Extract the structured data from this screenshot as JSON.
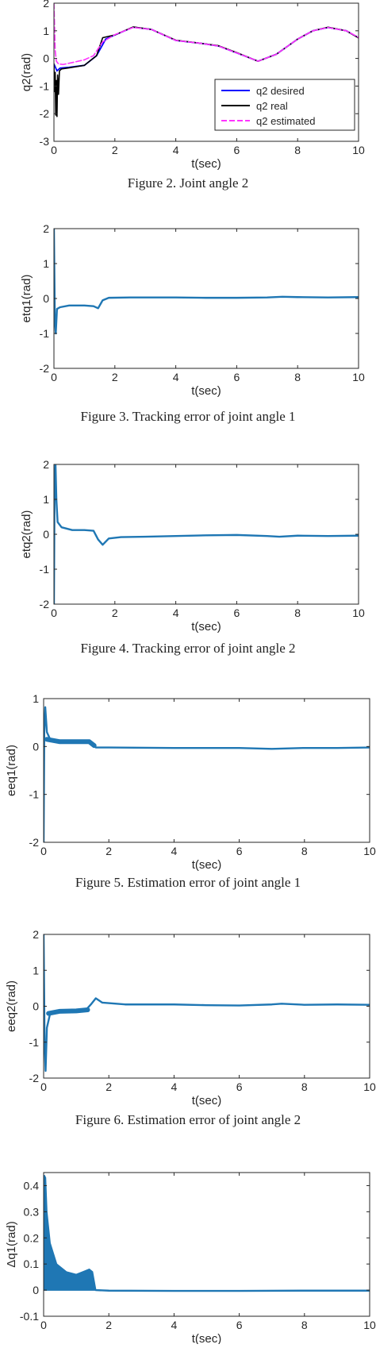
{
  "page": {
    "background": "#ffffff"
  },
  "chart_data": [
    {
      "type": "line",
      "caption": "Figure 2.    Joint angle 2",
      "xlabel": "t(sec)",
      "ylabel": "q2(rad)",
      "xlim": [
        0,
        10
      ],
      "ylim": [
        -3,
        2
      ],
      "xticks": [
        "0",
        "2",
        "4",
        "6",
        "8",
        "10"
      ],
      "yticks": [
        "-3",
        "-2",
        "-1",
        "0",
        "1",
        "2"
      ],
      "grid": false,
      "legend": {
        "position": "bottom-right",
        "entries": [
          "q2 desired",
          "q2 real",
          "q2 estimated"
        ]
      },
      "series": [
        {
          "name": "q2 desired",
          "color": "#0000ff",
          "style": "solid",
          "width": 1.8,
          "points": [
            [
              0,
              -0.2
            ],
            [
              0.1,
              -0.45
            ],
            [
              0.2,
              -0.35
            ],
            [
              0.5,
              -0.32
            ],
            [
              1,
              -0.25
            ],
            [
              1.4,
              0.1
            ],
            [
              1.7,
              0.7
            ],
            [
              2.0,
              0.85
            ],
            [
              2.6,
              1.13
            ],
            [
              3.2,
              1.05
            ],
            [
              4,
              0.65
            ],
            [
              4.8,
              0.55
            ],
            [
              5.4,
              0.45
            ],
            [
              6,
              0.2
            ],
            [
              6.7,
              -0.1
            ],
            [
              7.3,
              0.15
            ],
            [
              8,
              0.7
            ],
            [
              8.5,
              1.0
            ],
            [
              9,
              1.12
            ],
            [
              9.6,
              1.0
            ],
            [
              10,
              0.75
            ]
          ]
        },
        {
          "name": "q2 real",
          "color": "#000000",
          "style": "solid",
          "width": 1.6,
          "points": [
            [
              0,
              -0.2
            ],
            [
              0.02,
              -1.2
            ],
            [
              0.04,
              -0.5
            ],
            [
              0.06,
              -2.05
            ],
            [
              0.08,
              -0.8
            ],
            [
              0.1,
              -2.1
            ],
            [
              0.12,
              -0.6
            ],
            [
              0.15,
              -1.3
            ],
            [
              0.18,
              -0.45
            ],
            [
              0.25,
              -0.38
            ],
            [
              0.5,
              -0.34
            ],
            [
              1,
              -0.25
            ],
            [
              1.4,
              0.1
            ],
            [
              1.6,
              0.75
            ],
            [
              2.0,
              0.85
            ],
            [
              2.6,
              1.14
            ],
            [
              3.2,
              1.05
            ],
            [
              4,
              0.66
            ],
            [
              4.8,
              0.55
            ],
            [
              5.4,
              0.46
            ],
            [
              6,
              0.21
            ],
            [
              6.7,
              -0.1
            ],
            [
              7.3,
              0.15
            ],
            [
              8,
              0.7
            ],
            [
              8.5,
              1.0
            ],
            [
              9,
              1.13
            ],
            [
              9.6,
              1.0
            ],
            [
              10,
              0.74
            ]
          ]
        },
        {
          "name": "q2 estimated",
          "color": "#ff33ff",
          "style": "dashed",
          "width": 1.6,
          "points": [
            [
              0,
              2.0
            ],
            [
              0.04,
              0.3
            ],
            [
              0.08,
              -0.1
            ],
            [
              0.15,
              -0.2
            ],
            [
              0.3,
              -0.22
            ],
            [
              0.6,
              -0.15
            ],
            [
              1.0,
              -0.05
            ],
            [
              1.3,
              0.1
            ],
            [
              1.6,
              0.6
            ],
            [
              2.0,
              0.86
            ],
            [
              2.6,
              1.12
            ],
            [
              3.2,
              1.05
            ],
            [
              4,
              0.65
            ],
            [
              4.8,
              0.55
            ],
            [
              5.4,
              0.45
            ],
            [
              6,
              0.2
            ],
            [
              6.7,
              -0.1
            ],
            [
              7.3,
              0.15
            ],
            [
              8,
              0.7
            ],
            [
              8.5,
              1.0
            ],
            [
              9,
              1.12
            ],
            [
              9.6,
              1.0
            ],
            [
              10,
              0.76
            ]
          ]
        }
      ]
    },
    {
      "type": "line",
      "caption": "Figure 3.    Tracking error of joint angle 1",
      "xlabel": "t(sec)",
      "ylabel": "etq1(rad)",
      "xlim": [
        0,
        10
      ],
      "ylim": [
        -2,
        2
      ],
      "xticks": [
        "0",
        "2",
        "4",
        "6",
        "8",
        "10"
      ],
      "yticks": [
        "-2",
        "-1",
        "0",
        "1",
        "2"
      ],
      "grid": false,
      "series": [
        {
          "color": "#1f77b4",
          "style": "solid",
          "width": 2.4,
          "points": [
            [
              0,
              2.0
            ],
            [
              0.03,
              -0.6
            ],
            [
              0.06,
              -1.0
            ],
            [
              0.1,
              -0.3
            ],
            [
              0.2,
              -0.25
            ],
            [
              0.5,
              -0.2
            ],
            [
              1.0,
              -0.2
            ],
            [
              1.3,
              -0.22
            ],
            [
              1.45,
              -0.28
            ],
            [
              1.6,
              -0.05
            ],
            [
              1.8,
              0.02
            ],
            [
              2.5,
              0.03
            ],
            [
              4,
              0.03
            ],
            [
              5,
              0.02
            ],
            [
              6,
              0.02
            ],
            [
              7,
              0.03
            ],
            [
              7.5,
              0.05
            ],
            [
              8,
              0.04
            ],
            [
              9,
              0.03
            ],
            [
              10,
              0.04
            ]
          ]
        }
      ]
    },
    {
      "type": "line",
      "caption": "Figure 4.    Tracking error of joint angle 2",
      "xlabel": "t(sec)",
      "ylabel": "etq2(rad)",
      "xlim": [
        0,
        10
      ],
      "ylim": [
        -2,
        2
      ],
      "xticks": [
        "0",
        "2",
        "4",
        "6",
        "8",
        "10"
      ],
      "yticks": [
        "-2",
        "-1",
        "0",
        "1",
        "2"
      ],
      "grid": false,
      "series": [
        {
          "color": "#1f77b4",
          "style": "solid",
          "width": 2.4,
          "points": [
            [
              0,
              -2.0
            ],
            [
              0.02,
              1.2
            ],
            [
              0.05,
              2.05
            ],
            [
              0.08,
              1.0
            ],
            [
              0.12,
              0.35
            ],
            [
              0.25,
              0.2
            ],
            [
              0.6,
              0.12
            ],
            [
              1.0,
              0.12
            ],
            [
              1.3,
              0.1
            ],
            [
              1.45,
              -0.15
            ],
            [
              1.6,
              -0.3
            ],
            [
              1.8,
              -0.12
            ],
            [
              2.2,
              -0.08
            ],
            [
              3,
              -0.07
            ],
            [
              4,
              -0.05
            ],
            [
              5,
              -0.03
            ],
            [
              6,
              -0.02
            ],
            [
              7,
              -0.05
            ],
            [
              7.4,
              -0.07
            ],
            [
              8,
              -0.04
            ],
            [
              9,
              -0.05
            ],
            [
              10,
              -0.04
            ]
          ]
        }
      ]
    },
    {
      "type": "line",
      "caption": "Figure 5.    Estimation error of joint angle 1",
      "xlabel": "t(sec)",
      "ylabel": "eeq1(rad)",
      "xlim": [
        0,
        10
      ],
      "ylim": [
        -2,
        1
      ],
      "xticks": [
        "0",
        "2",
        "4",
        "6",
        "8",
        "10"
      ],
      "yticks": [
        "-2",
        "-1",
        "0",
        "1"
      ],
      "grid": false,
      "series": [
        {
          "color": "#1f77b4",
          "style": "solid",
          "width": 2.4,
          "points": [
            [
              0,
              -2.0
            ],
            [
              0.02,
              0.3
            ],
            [
              0.05,
              0.82
            ],
            [
              0.1,
              0.3
            ],
            [
              0.2,
              0.15
            ],
            [
              0.6,
              0.1
            ],
            [
              1.0,
              0.1
            ],
            [
              1.3,
              0.12
            ],
            [
              1.5,
              0.05
            ],
            [
              1.6,
              -0.02
            ],
            [
              2,
              -0.02
            ],
            [
              4,
              -0.03
            ],
            [
              6,
              -0.03
            ],
            [
              7,
              -0.05
            ],
            [
              8,
              -0.03
            ],
            [
              9,
              -0.03
            ],
            [
              10,
              -0.02
            ]
          ]
        },
        {
          "color": "#1f77b4",
          "style": "band",
          "width": 6,
          "points": [
            [
              0.1,
              0.15
            ],
            [
              0.5,
              0.1
            ],
            [
              1.0,
              0.1
            ],
            [
              1.4,
              0.1
            ],
            [
              1.55,
              0.02
            ]
          ]
        }
      ]
    },
    {
      "type": "line",
      "caption": "Figure 6.    Estimation error of joint angle 2",
      "xlabel": "t(sec)",
      "ylabel": "eeq2(rad)",
      "xlim": [
        0,
        10
      ],
      "ylim": [
        -2,
        2
      ],
      "xticks": [
        "0",
        "2",
        "4",
        "6",
        "8",
        "10"
      ],
      "yticks": [
        "-2",
        "-1",
        "0",
        "1",
        "2"
      ],
      "grid": false,
      "series": [
        {
          "color": "#1f77b4",
          "style": "solid",
          "width": 2.4,
          "points": [
            [
              0,
              2.0
            ],
            [
              0.03,
              -1.0
            ],
            [
              0.06,
              -1.8
            ],
            [
              0.1,
              -0.6
            ],
            [
              0.2,
              -0.2
            ],
            [
              0.5,
              -0.15
            ],
            [
              1.0,
              -0.13
            ],
            [
              1.3,
              -0.1
            ],
            [
              1.45,
              0.05
            ],
            [
              1.6,
              0.22
            ],
            [
              1.8,
              0.1
            ],
            [
              2.5,
              0.05
            ],
            [
              4,
              0.05
            ],
            [
              5,
              0.03
            ],
            [
              6,
              0.02
            ],
            [
              7,
              0.05
            ],
            [
              7.3,
              0.07
            ],
            [
              8,
              0.04
            ],
            [
              9,
              0.05
            ],
            [
              10,
              0.04
            ]
          ]
        },
        {
          "color": "#1f77b4",
          "style": "band",
          "width": 6,
          "points": [
            [
              0.15,
              -0.2
            ],
            [
              0.5,
              -0.14
            ],
            [
              1.0,
              -0.13
            ],
            [
              1.35,
              -0.1
            ]
          ]
        }
      ]
    },
    {
      "type": "area",
      "caption": "",
      "xlabel": "t(sec)",
      "ylabel": "Δq1(rad)",
      "xlim": [
        0,
        10
      ],
      "ylim": [
        -0.1,
        0.45
      ],
      "xticks": [
        "0",
        "2",
        "4",
        "6",
        "8",
        "10"
      ],
      "yticks": [
        "-0.1",
        "0",
        "0.1",
        "0.2",
        "0.3",
        "0.4"
      ],
      "grid": false,
      "series": [
        {
          "color": "#1f77b4",
          "style": "fill",
          "width": 1.5,
          "upper": [
            [
              0.02,
              0.44
            ],
            [
              0.06,
              0.43
            ],
            [
              0.1,
              0.3
            ],
            [
              0.2,
              0.18
            ],
            [
              0.4,
              0.1
            ],
            [
              0.7,
              0.07
            ],
            [
              1.0,
              0.06
            ],
            [
              1.2,
              0.07
            ],
            [
              1.4,
              0.08
            ],
            [
              1.5,
              0.07
            ],
            [
              1.6,
              0.0
            ]
          ],
          "lower": [
            [
              0.02,
              0.0
            ],
            [
              1.6,
              0.0
            ]
          ]
        },
        {
          "color": "#1f77b4",
          "style": "solid",
          "width": 2.4,
          "points": [
            [
              1.6,
              0.0
            ],
            [
              2,
              -0.002
            ],
            [
              4,
              -0.003
            ],
            [
              6,
              -0.003
            ],
            [
              8,
              -0.002
            ],
            [
              10,
              -0.002
            ]
          ]
        }
      ]
    }
  ]
}
